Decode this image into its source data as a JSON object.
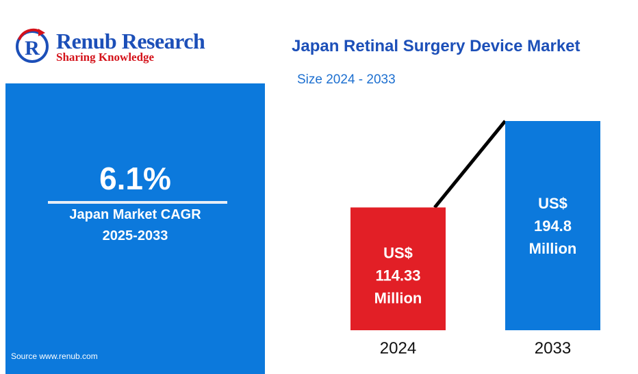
{
  "brand": {
    "name": "Renub Research",
    "tagline": "Sharing Knowledge"
  },
  "summary": {
    "cagr_value": "6.1%",
    "cagr_label": "Japan Market CAGR",
    "cagr_period": "2025-2033",
    "source": "Source  www.renub.com"
  },
  "colors": {
    "brand_blue": "#1c4fb8",
    "panel_blue": "#0c79dc",
    "bar_2024": "#e21f26",
    "bar_2033": "#0c79dc"
  },
  "chart_data": {
    "type": "bar",
    "title": "Japan Retinal Surgery Device Market",
    "subtitle": "Size 2024 - 2033",
    "categories": [
      "2024",
      "2033"
    ],
    "values": [
      114.33,
      194.8
    ],
    "unit": "US$ Million",
    "bar_labels": [
      [
        "US$",
        "114.33",
        "Million"
      ],
      [
        "US$",
        "194.8",
        "Million"
      ]
    ],
    "grid": false,
    "legend": "none"
  }
}
